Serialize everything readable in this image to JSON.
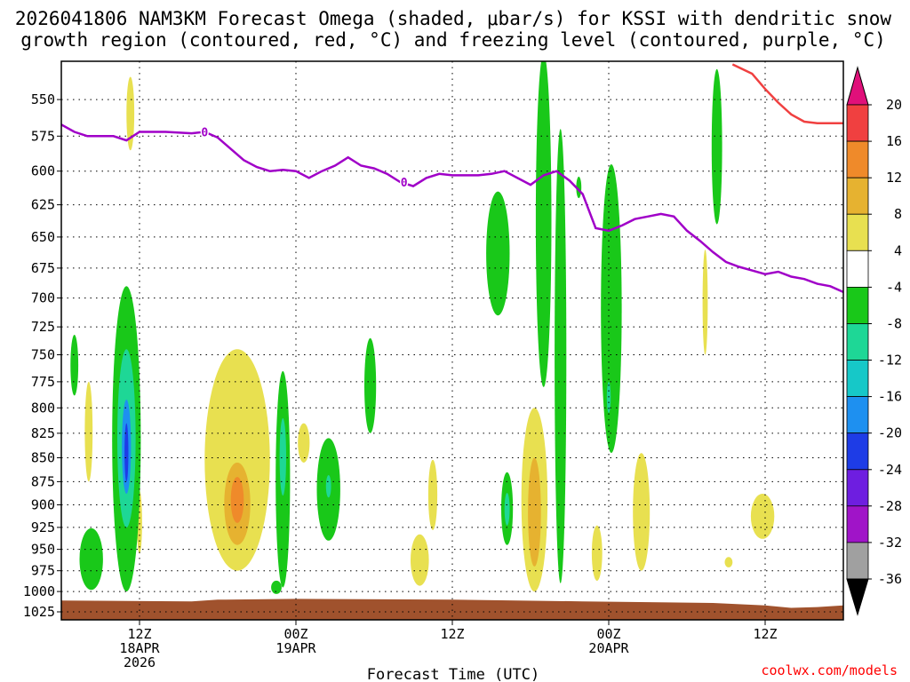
{
  "title_line1": "2026041806 NAM3KM Forecast Omega (shaded, μbar/s) for KSSI with dendritic snow",
  "title_line2": "growth region (contoured, red, °C) and freezing level (contoured, purple, °C)",
  "credit": "coolwx.com/models",
  "chart_data": {
    "type": "heatmap",
    "title": "2026041806 NAM3KM Forecast Omega (shaded, μbar/s) for KSSI with dendritic snow growth region (contoured, red, °C) and freezing level (contoured, purple, °C)",
    "xlabel": "Forecast Time (UTC)",
    "ylabel": "",
    "x_unit": "forecast hour",
    "xlim": [
      0,
      60
    ],
    "ylim_hpa": [
      1035,
      525
    ],
    "y_scale": "log-pressure (inverted)",
    "grid": true,
    "x_ticks": [
      {
        "hour": 6,
        "lines": [
          "12Z",
          "18APR",
          "2026"
        ]
      },
      {
        "hour": 18,
        "lines": [
          "00Z",
          "19APR"
        ]
      },
      {
        "hour": 30,
        "lines": [
          "12Z"
        ]
      },
      {
        "hour": 42,
        "lines": [
          "00Z",
          "20APR"
        ]
      },
      {
        "hour": 54,
        "lines": [
          "12Z"
        ]
      }
    ],
    "y_ticks": [
      550,
      575,
      600,
      625,
      650,
      675,
      700,
      725,
      750,
      775,
      800,
      825,
      850,
      875,
      900,
      925,
      950,
      975,
      1000,
      1025
    ],
    "colorbar": {
      "labels": [
        "20",
        "16",
        "12",
        "8",
        "4",
        "-4",
        "-8",
        "-12",
        "-16",
        "-20",
        "-24",
        "-28",
        "-32",
        "-36"
      ],
      "colors": [
        "#e0107a",
        "#f04040",
        "#ef8a2a",
        "#e6b230",
        "#e8e050",
        "#ffffff",
        "#19c819",
        "#1ed796",
        "#16c8c8",
        "#1e90f0",
        "#1e3ce6",
        "#6e1ee0",
        "#a014c8",
        "#a0a0a0",
        "#000000"
      ]
    },
    "freezing_level": {
      "label": "0",
      "color": "#a000c8",
      "points": [
        [
          0,
          567
        ],
        [
          1,
          572
        ],
        [
          2,
          575
        ],
        [
          3,
          575
        ],
        [
          4,
          575
        ],
        [
          5,
          578
        ],
        [
          6,
          572
        ],
        [
          8,
          572
        ],
        [
          10,
          573
        ],
        [
          11,
          572
        ],
        [
          12,
          576
        ],
        [
          13,
          584
        ],
        [
          14,
          592
        ],
        [
          15,
          597
        ],
        [
          16,
          600
        ],
        [
          17,
          599
        ],
        [
          18,
          600
        ],
        [
          19,
          605
        ],
        [
          20,
          600
        ],
        [
          21,
          596
        ],
        [
          22,
          590
        ],
        [
          23,
          596
        ],
        [
          24,
          598
        ],
        [
          25,
          602
        ],
        [
          26,
          608
        ],
        [
          27,
          611
        ],
        [
          28,
          605
        ],
        [
          29,
          602
        ],
        [
          30,
          603
        ],
        [
          32,
          603
        ],
        [
          33,
          602
        ],
        [
          34,
          600
        ],
        [
          35,
          605
        ],
        [
          36,
          610
        ],
        [
          37,
          603
        ],
        [
          38,
          600
        ],
        [
          39,
          607
        ],
        [
          40,
          617
        ],
        [
          41,
          643
        ],
        [
          42,
          645
        ],
        [
          43,
          641
        ],
        [
          44,
          636
        ],
        [
          45,
          634
        ],
        [
          46,
          632
        ],
        [
          47,
          634
        ],
        [
          48,
          645
        ],
        [
          49,
          653
        ],
        [
          50,
          662
        ],
        [
          51,
          670
        ],
        [
          52,
          674
        ],
        [
          53,
          677
        ],
        [
          54,
          680
        ],
        [
          55,
          678
        ],
        [
          56,
          682
        ],
        [
          57,
          684
        ],
        [
          58,
          688
        ],
        [
          59,
          690
        ],
        [
          60,
          695
        ]
      ]
    },
    "dgz_contour": {
      "color": "#f04040",
      "points": [
        [
          51.5,
          527
        ],
        [
          53,
          533
        ],
        [
          54,
          543
        ],
        [
          55,
          552
        ],
        [
          56,
          560
        ],
        [
          57,
          565
        ],
        [
          58,
          566
        ],
        [
          60,
          566
        ]
      ]
    },
    "omega_regions": [
      {
        "level": -4,
        "cx": 1.0,
        "p_center": 760,
        "p_half": 28,
        "w_half": 0.3
      },
      {
        "level": -4,
        "cx": 2.3,
        "p_center": 962,
        "p_half": 36,
        "w_half": 0.9
      },
      {
        "level": -4,
        "cx": 5.0,
        "p_center": 845,
        "p_half": 155,
        "w_half": 1.1
      },
      {
        "level": -8,
        "cx": 5.0,
        "p_center": 835,
        "p_half": 90,
        "w_half": 0.7
      },
      {
        "level": -16,
        "cx": 5.0,
        "p_center": 840,
        "p_half": 48,
        "w_half": 0.35
      },
      {
        "level": -20,
        "cx": 5.0,
        "p_center": 845,
        "p_half": 30,
        "w_half": 0.15
      },
      {
        "level": -4,
        "cx": 17.0,
        "p_center": 880,
        "p_half": 115,
        "w_half": 0.55
      },
      {
        "level": -8,
        "cx": 17.0,
        "p_center": 850,
        "p_half": 40,
        "w_half": 0.25
      },
      {
        "level": -4,
        "cx": 16.5,
        "p_center": 995,
        "p_half": 8,
        "w_half": 0.4
      },
      {
        "level": -4,
        "cx": 20.5,
        "p_center": 885,
        "p_half": 55,
        "w_half": 0.9
      },
      {
        "level": -8,
        "cx": 20.5,
        "p_center": 880,
        "p_half": 12,
        "w_half": 0.2
      },
      {
        "level": -4,
        "cx": 23.7,
        "p_center": 780,
        "p_half": 45,
        "w_half": 0.45
      },
      {
        "level": -4,
        "cx": 33.5,
        "p_center": 665,
        "p_half": 50,
        "w_half": 0.9
      },
      {
        "level": -4,
        "cx": 34.2,
        "p_center": 905,
        "p_half": 40,
        "w_half": 0.45
      },
      {
        "level": -8,
        "cx": 34.2,
        "p_center": 905,
        "p_half": 18,
        "w_half": 0.2
      },
      {
        "level": -4,
        "cx": 37.0,
        "p_center": 650,
        "p_half": 130,
        "w_half": 0.6
      },
      {
        "level": -4,
        "cx": 38.3,
        "p_center": 780,
        "p_half": 210,
        "w_half": 0.45
      },
      {
        "level": -4,
        "cx": 39.7,
        "p_center": 612,
        "p_half": 8,
        "w_half": 0.2
      },
      {
        "level": -4,
        "cx": 42.2,
        "p_center": 720,
        "p_half": 125,
        "w_half": 0.8
      },
      {
        "level": -8,
        "cx": 42.0,
        "p_center": 790,
        "p_half": 15,
        "w_half": 0.15
      },
      {
        "level": -4,
        "cx": 50.3,
        "p_center": 585,
        "p_half": 55,
        "w_half": 0.4
      }
    ],
    "positive_regions": [
      {
        "level": 4,
        "cx": 5.3,
        "p_center": 560,
        "p_half": 25,
        "w_half": 0.3
      },
      {
        "level": 4,
        "cx": 2.1,
        "p_center": 825,
        "p_half": 50,
        "w_half": 0.3
      },
      {
        "level": 4,
        "cx": 6.0,
        "p_center": 920,
        "p_half": 35,
        "w_half": 0.2
      },
      {
        "level": 4,
        "cx": 13.5,
        "p_center": 860,
        "p_half": 115,
        "w_half": 2.5
      },
      {
        "level": 8,
        "cx": 13.5,
        "p_center": 900,
        "p_half": 45,
        "w_half": 1.0
      },
      {
        "level": 12,
        "cx": 13.5,
        "p_center": 895,
        "p_half": 25,
        "w_half": 0.5
      },
      {
        "level": 4,
        "cx": 18.6,
        "p_center": 835,
        "p_half": 20,
        "w_half": 0.45
      },
      {
        "level": 4,
        "cx": 27.5,
        "p_center": 963,
        "p_half": 30,
        "w_half": 0.7
      },
      {
        "level": 4,
        "cx": 28.5,
        "p_center": 890,
        "p_half": 38,
        "w_half": 0.35
      },
      {
        "level": 4,
        "cx": 36.3,
        "p_center": 900,
        "p_half": 100,
        "w_half": 1.0
      },
      {
        "level": 8,
        "cx": 36.3,
        "p_center": 910,
        "p_half": 60,
        "w_half": 0.5
      },
      {
        "level": 4,
        "cx": 41.1,
        "p_center": 955,
        "p_half": 32,
        "w_half": 0.4
      },
      {
        "level": 4,
        "cx": 44.5,
        "p_center": 910,
        "p_half": 65,
        "w_half": 0.65
      },
      {
        "level": 4,
        "cx": 49.4,
        "p_center": 705,
        "p_half": 45,
        "w_half": 0.2
      },
      {
        "level": 4,
        "cx": 51.2,
        "p_center": 965,
        "p_half": 6,
        "w_half": 0.3
      },
      {
        "level": 4,
        "cx": 53.8,
        "p_center": 913,
        "p_half": 25,
        "w_half": 0.9
      }
    ],
    "surface_pressure": [
      [
        0,
        1011
      ],
      [
        10,
        1012
      ],
      [
        12,
        1010
      ],
      [
        18,
        1009
      ],
      [
        30,
        1010
      ],
      [
        40,
        1012
      ],
      [
        50,
        1014
      ],
      [
        54,
        1017
      ],
      [
        56,
        1020
      ],
      [
        58,
        1019
      ],
      [
        60,
        1017
      ]
    ]
  }
}
